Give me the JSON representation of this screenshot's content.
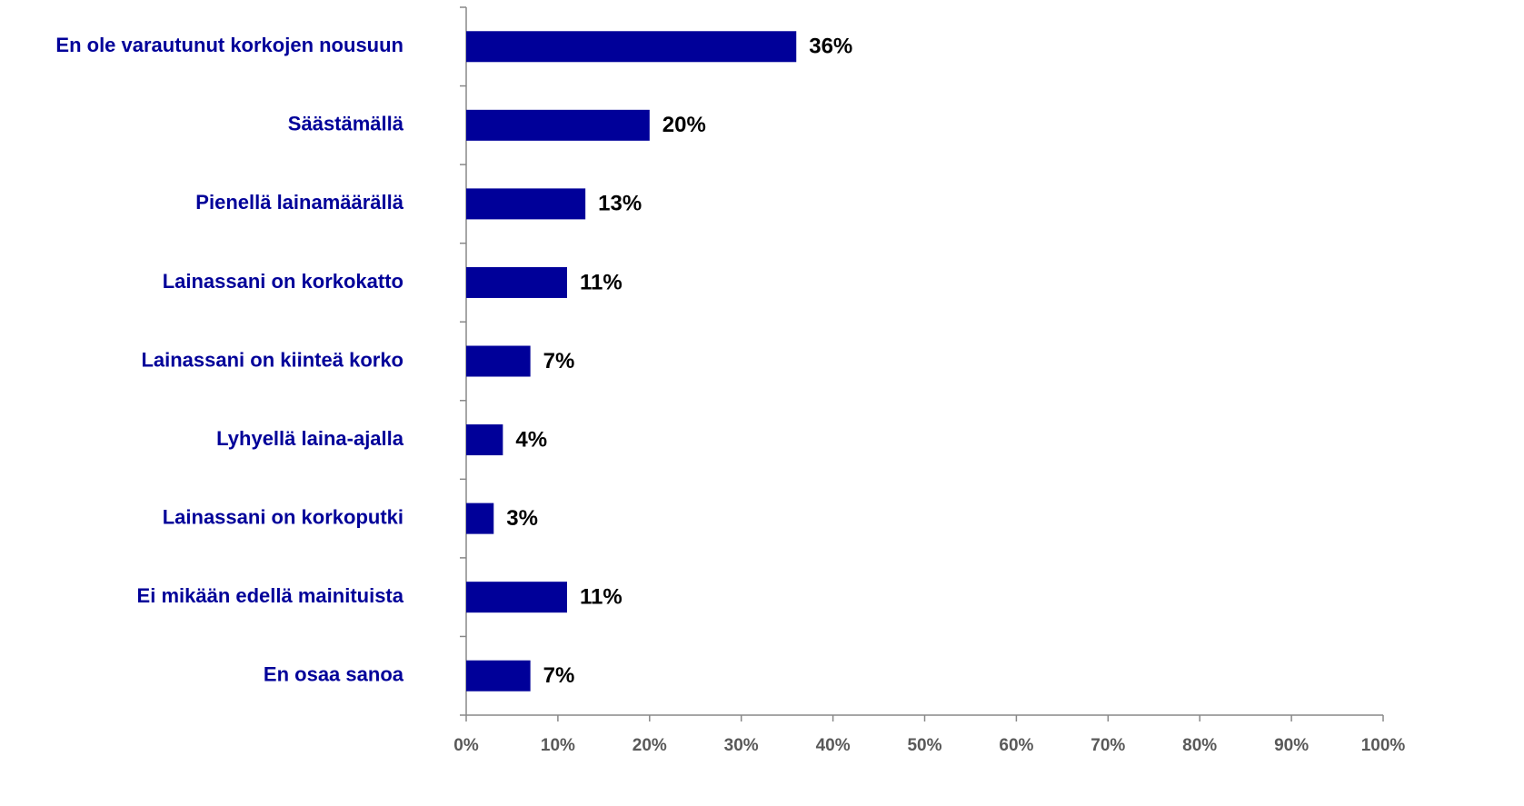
{
  "chart_data": {
    "type": "bar",
    "orientation": "horizontal",
    "categories": [
      "En ole varautunut korkojen nousuun",
      "Säästämällä",
      "Pienellä lainamäärällä",
      "Lainassani on korkokatto",
      "Lainassani on kiinteä korko",
      "Lyhyellä laina-ajalla",
      "Lainassani on korkoputki",
      "Ei mikään edellä mainituista",
      "En osaa sanoa"
    ],
    "values": [
      36,
      20,
      13,
      11,
      7,
      4,
      3,
      11,
      7
    ],
    "value_labels": [
      "36%",
      "20%",
      "13%",
      "11%",
      "7%",
      "4%",
      "3%",
      "11%",
      "7%"
    ],
    "color": "#000099",
    "xlim": [
      0,
      100
    ],
    "xticks": [
      {
        "value": 0,
        "label": "0%"
      },
      {
        "value": 10,
        "label": "10%"
      },
      {
        "value": 20,
        "label": "20%"
      },
      {
        "value": 30,
        "label": "30%"
      },
      {
        "value": 40,
        "label": "40%"
      },
      {
        "value": 50,
        "label": "50%"
      },
      {
        "value": 60,
        "label": "60%"
      },
      {
        "value": 70,
        "label": "70%"
      },
      {
        "value": 80,
        "label": "80%"
      },
      {
        "value": 90,
        "label": "90%"
      },
      {
        "value": 100,
        "label": "100%"
      }
    ],
    "grid": false
  }
}
